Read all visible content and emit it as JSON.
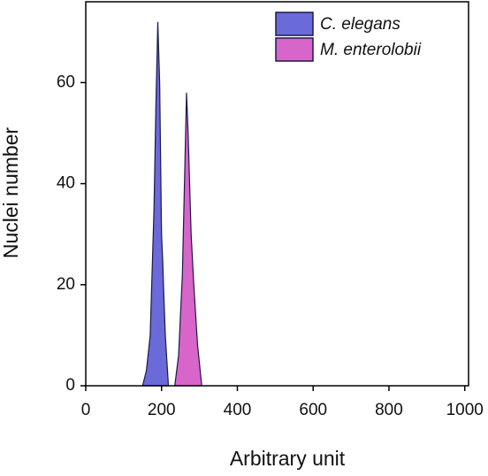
{
  "chart_data": {
    "type": "area",
    "x_label": "Arbitrary unit",
    "y_label": "Nuclei number",
    "series": [
      {
        "name": "C. elegans",
        "color": "#6a6ad8",
        "x": [
          150,
          160,
          170,
          180,
          185,
          190,
          195,
          200,
          203,
          205,
          210,
          218
        ],
        "values": [
          0,
          3,
          10,
          35,
          55,
          72,
          60,
          30,
          25,
          20,
          10,
          0
        ]
      },
      {
        "name": "M. enterolobii",
        "color": "#d865c9",
        "x": [
          235,
          245,
          255,
          262,
          266,
          270,
          278,
          285,
          295,
          306
        ],
        "values": [
          0,
          6,
          22,
          45,
          58,
          50,
          30,
          20,
          8,
          0
        ]
      }
    ],
    "xlim": [
      0,
      1010
    ],
    "ylim": [
      0,
      76
    ],
    "xticks": [
      0,
      200,
      400,
      600,
      800,
      1000
    ],
    "yticks": [
      0,
      20,
      40,
      60
    ],
    "legend": "upper right"
  }
}
